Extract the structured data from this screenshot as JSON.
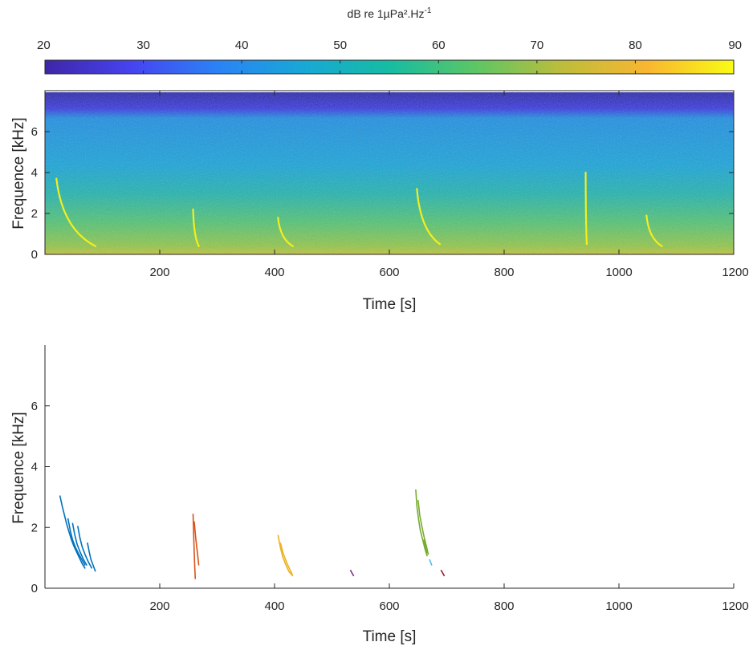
{
  "chart_data": [
    {
      "type": "colorbar",
      "title": "dB re 1µPa².Hz",
      "title_superscript": "-1",
      "range": [
        20,
        90
      ],
      "ticks": [
        20,
        30,
        40,
        50,
        60,
        70,
        80,
        90
      ],
      "colormap": "parula",
      "colors": [
        "#3e26a8",
        "#4743f0",
        "#2b82f6",
        "#18a8d6",
        "#16bca3",
        "#5cc665",
        "#bdbd3b",
        "#f9b631",
        "#f9fb15"
      ]
    },
    {
      "type": "heatmap",
      "title": "",
      "xlabel": "Time [s]",
      "ylabel": "Frequence [kHz]",
      "xlim": [
        0,
        1200
      ],
      "ylim": [
        0,
        8
      ],
      "xticks": [
        200,
        400,
        600,
        800,
        1000,
        1200
      ],
      "yticks": [
        0,
        2,
        4,
        6
      ],
      "max_frequency_khz": 7.8,
      "highlighted_calls": [
        {
          "t_start": 20,
          "f_start": 3.7,
          "t_end": 88,
          "f_end": 0.4
        },
        {
          "t_start": 258,
          "f_start": 2.2,
          "t_end": 268,
          "f_end": 0.4
        },
        {
          "t_start": 406,
          "f_start": 1.8,
          "t_end": 432,
          "f_end": 0.4
        },
        {
          "t_start": 648,
          "f_start": 3.2,
          "t_end": 688,
          "f_end": 0.5
        },
        {
          "t_start": 942,
          "f_start": 4.0,
          "t_end": 944,
          "f_end": 0.5
        },
        {
          "t_start": 1048,
          "f_start": 1.9,
          "t_end": 1075,
          "f_end": 0.4
        }
      ]
    },
    {
      "type": "line",
      "title": "",
      "xlabel": "Time [s]",
      "ylabel": "Frequence [kHz]",
      "xlim": [
        0,
        1200
      ],
      "ylim": [
        0,
        8
      ],
      "xticks": [
        200,
        400,
        600,
        800,
        1000,
        1200
      ],
      "yticks": [
        0,
        2,
        4,
        6
      ],
      "series": [
        {
          "color": "#0072bd",
          "segments": [
            [
              [
                26,
                3.05
              ],
              [
                30,
                2.7
              ],
              [
                34,
                2.4
              ],
              [
                38,
                2.1
              ],
              [
                42,
                1.85
              ],
              [
                46,
                1.6
              ],
              [
                50,
                1.4
              ],
              [
                55,
                1.2
              ],
              [
                60,
                1.0
              ],
              [
                65,
                0.8
              ],
              [
                70,
                0.65
              ]
            ],
            [
              [
                40,
                2.3
              ],
              [
                44,
                1.9
              ],
              [
                48,
                1.6
              ],
              [
                53,
                1.35
              ],
              [
                58,
                1.15
              ],
              [
                64,
                0.95
              ],
              [
                70,
                0.75
              ]
            ],
            [
              [
                48,
                2.15
              ],
              [
                52,
                1.75
              ],
              [
                56,
                1.45
              ],
              [
                61,
                1.2
              ],
              [
                67,
                0.95
              ],
              [
                73,
                0.75
              ]
            ],
            [
              [
                57,
                2.05
              ],
              [
                61,
                1.65
              ],
              [
                65,
                1.35
              ],
              [
                70,
                1.1
              ],
              [
                76,
                0.85
              ],
              [
                82,
                0.65
              ]
            ],
            [
              [
                74,
                1.5
              ],
              [
                77,
                1.2
              ],
              [
                80,
                0.95
              ],
              [
                84,
                0.75
              ],
              [
                88,
                0.55
              ]
            ]
          ]
        },
        {
          "color": "#d95319",
          "segments": [
            [
              [
                258,
                2.45
              ],
              [
                259,
                1.8
              ],
              [
                260,
                1.2
              ],
              [
                261,
                0.7
              ],
              [
                262,
                0.3
              ]
            ],
            [
              [
                260,
                2.2
              ],
              [
                263,
                1.6
              ],
              [
                266,
                1.1
              ],
              [
                268,
                0.75
              ]
            ]
          ]
        },
        {
          "color": "#edb120",
          "segments": [
            [
              [
                406,
                1.75
              ],
              [
                410,
                1.35
              ],
              [
                414,
                1.05
              ],
              [
                419,
                0.8
              ],
              [
                425,
                0.55
              ],
              [
                432,
                0.4
              ]
            ],
            [
              [
                410,
                1.5
              ],
              [
                415,
                1.15
              ],
              [
                421,
                0.85
              ],
              [
                427,
                0.6
              ],
              [
                431,
                0.45
              ]
            ]
          ]
        },
        {
          "color": "#7e2f8e",
          "segments": [
            [
              [
                532,
                0.6
              ],
              [
                535,
                0.5
              ],
              [
                538,
                0.4
              ]
            ]
          ]
        },
        {
          "color": "#77ac30",
          "segments": [
            [
              [
                646,
                3.25
              ],
              [
                648,
                2.7
              ],
              [
                651,
                2.25
              ],
              [
                654,
                1.9
              ],
              [
                658,
                1.6
              ],
              [
                662,
                1.3
              ],
              [
                666,
                1.05
              ]
            ],
            [
              [
                650,
                2.9
              ],
              [
                653,
                2.4
              ],
              [
                657,
                2.0
              ],
              [
                661,
                1.65
              ],
              [
                665,
                1.35
              ],
              [
                668,
                1.1
              ]
            ],
            [
              [
                660,
                1.6
              ],
              [
                663,
                1.35
              ],
              [
                666,
                1.15
              ]
            ]
          ]
        },
        {
          "color": "#4dbeee",
          "segments": [
            [
              [
                670,
                0.95
              ],
              [
                672,
                0.85
              ],
              [
                674,
                0.75
              ]
            ]
          ]
        },
        {
          "color": "#a2142f",
          "segments": [
            [
              [
                690,
                0.6
              ],
              [
                693,
                0.5
              ],
              [
                696,
                0.4
              ]
            ]
          ]
        }
      ]
    }
  ]
}
